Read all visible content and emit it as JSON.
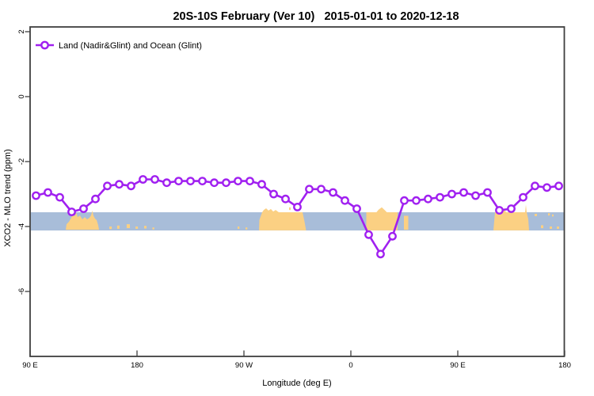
{
  "colors": {
    "background": "#FFFFFF",
    "axis": "#3F3F3F",
    "text": "#000000"
  },
  "chart_data": {
    "type": "line",
    "title": "20S-10S February (Ver 10)   2015-01-01 to 2020-12-18",
    "xlabel": "Longitude (deg E)",
    "ylabel": "XCO2 - MLO trend (ppm)",
    "x_tick_labels": [
      "90 E",
      "180",
      "90 W",
      "0",
      "90 E",
      "180"
    ],
    "x_tick_positions_deg": [
      0,
      90,
      180,
      270,
      360,
      450
    ],
    "y_tick_labels": [
      "2",
      "0",
      "-2",
      "-4",
      "-6"
    ],
    "y_tick_values": [
      2,
      0,
      -2,
      -4,
      -6
    ],
    "xlim_deg": [
      0,
      450
    ],
    "ylim_ppm": [
      -8,
      2.15
    ],
    "grid": false,
    "legend": {
      "label": "Land (Nadir&Glint) and Ocean (Glint)",
      "marker": "open-circle",
      "position": "top-left"
    },
    "series": [
      {
        "name": "Land (Nadir&Glint) and Ocean (Glint)",
        "color": "#A020F0",
        "marker": "open-circle",
        "x_deg": [
          5,
          15,
          25,
          35,
          45,
          55,
          65,
          75,
          85,
          95,
          105,
          115,
          125,
          135,
          145,
          155,
          165,
          175,
          185,
          195,
          205,
          215,
          225,
          235,
          245,
          255,
          265,
          275,
          285,
          295,
          305,
          315,
          325,
          335,
          345,
          355,
          365,
          375,
          385,
          395,
          405,
          415,
          425,
          435,
          445
        ],
        "values_ppm": [
          -3.05,
          -2.95,
          -3.1,
          -3.55,
          -3.45,
          -3.15,
          -2.75,
          -2.7,
          -2.75,
          -2.55,
          -2.55,
          -2.65,
          -2.6,
          -2.6,
          -2.6,
          -2.65,
          -2.65,
          -2.6,
          -2.6,
          -2.7,
          -3.0,
          -3.15,
          -3.4,
          -2.85,
          -2.85,
          -2.95,
          -3.2,
          -3.45,
          -4.25,
          -4.85,
          -4.3,
          -3.2,
          -3.2,
          -3.15,
          -3.1,
          -3.0,
          -2.95,
          -3.05,
          -2.95,
          -3.5,
          -3.45,
          -3.1,
          -2.75,
          -2.8,
          -2.75
        ]
      }
    ],
    "ocean_band": {
      "ppm_top": -3.56,
      "ppm_bottom": -4.12,
      "color": "#A8BDD9"
    },
    "land_overlay": {
      "color": "#FBD083",
      "polygons": [
        {
          "name": "land-profile-1",
          "points_deg_ppm": [
            [
              30,
              -4.1
            ],
            [
              30.7,
              -3.93
            ],
            [
              32.7,
              -3.85
            ],
            [
              34.7,
              -3.73
            ],
            [
              36,
              -3.63
            ],
            [
              37.5,
              -3.68
            ],
            [
              39,
              -3.58
            ],
            [
              40,
              -3.71
            ],
            [
              42,
              -3.66
            ],
            [
              44,
              -3.78
            ],
            [
              46,
              -3.71
            ],
            [
              48,
              -3.78
            ],
            [
              50,
              -3.73
            ],
            [
              51.3,
              -3.66
            ],
            [
              52.5,
              -3.51
            ],
            [
              53.3,
              -3.66
            ],
            [
              54.7,
              -3.76
            ],
            [
              56,
              -3.8
            ],
            [
              57.3,
              -3.95
            ],
            [
              58,
              -4.1
            ]
          ]
        },
        {
          "name": "land-profile-2",
          "points_deg_ppm": [
            [
              192.7,
              -4.12
            ],
            [
              193,
              -3.8
            ],
            [
              195.3,
              -3.56
            ],
            [
              196.7,
              -3.49
            ],
            [
              198.7,
              -3.44
            ],
            [
              200.7,
              -3.51
            ],
            [
              202.7,
              -3.46
            ],
            [
              204.7,
              -3.54
            ],
            [
              206.7,
              -3.49
            ],
            [
              209.3,
              -3.56
            ],
            [
              229.3,
              -3.56
            ],
            [
              231,
              -3.85
            ],
            [
              232.3,
              -4.12
            ]
          ]
        },
        {
          "name": "land-profile-3",
          "points_deg_ppm": [
            [
              283,
              -4.12
            ],
            [
              283,
              -3.56
            ],
            [
              291.5,
              -3.56
            ],
            [
              293.3,
              -3.48
            ],
            [
              296,
              -3.41
            ],
            [
              298.7,
              -3.5
            ],
            [
              300.3,
              -3.56
            ],
            [
              309.3,
              -3.56
            ],
            [
              309.3,
              -4.12
            ]
          ]
        },
        {
          "name": "land-profile-4",
          "points_deg_ppm": [
            [
              314.7,
              -4.1
            ],
            [
              314.7,
              -3.67
            ],
            [
              318.3,
              -3.67
            ],
            [
              318.3,
              -4.1
            ]
          ]
        },
        {
          "name": "land-profile-5",
          "points_deg_ppm": [
            [
              390,
              -4.12
            ],
            [
              391.3,
              -3.56
            ],
            [
              392.7,
              -3.48
            ],
            [
              394.7,
              -3.43
            ],
            [
              396.7,
              -3.5
            ],
            [
              398.7,
              -3.45
            ],
            [
              400.7,
              -3.56
            ],
            [
              416.7,
              -3.56
            ],
            [
              417.3,
              -3.33
            ],
            [
              418,
              -3.56
            ],
            [
              419.3,
              -3.77
            ],
            [
              420,
              -4.12
            ]
          ]
        }
      ],
      "specks_deg_ppm_w_h": [
        [
          66.7,
          -4.0,
          2,
          0.08
        ],
        [
          73.3,
          -3.97,
          2,
          0.1
        ],
        [
          81.3,
          -3.93,
          2.7,
          0.12
        ],
        [
          88.7,
          -4.0,
          2,
          0.07
        ],
        [
          96,
          -3.98,
          2,
          0.08
        ],
        [
          103,
          -4.03,
          1.5,
          0.06
        ],
        [
          174.7,
          -4.0,
          1.5,
          0.07
        ],
        [
          181.3,
          -4.03,
          1.5,
          0.06
        ],
        [
          218,
          -3.41,
          1.3,
          0.08
        ],
        [
          424.7,
          -3.61,
          2,
          0.07
        ],
        [
          430,
          -3.96,
          2,
          0.09
        ],
        [
          436,
          -3.59,
          1.5,
          0.07
        ],
        [
          437.3,
          -4.0,
          2,
          0.07
        ],
        [
          439.3,
          -3.63,
          1.3,
          0.06
        ],
        [
          443.3,
          -4.0,
          2,
          0.07
        ]
      ]
    }
  }
}
